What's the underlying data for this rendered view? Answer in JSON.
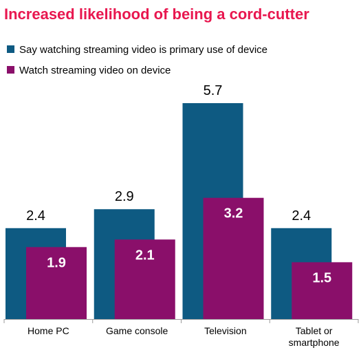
{
  "chart_data": {
    "type": "bar",
    "title": "Increased likelihood of being a cord-cutter",
    "xlabel": "",
    "ylabel": "",
    "ylim": [
      0,
      6.2
    ],
    "grid": false,
    "legend_position": "top-left",
    "categories": [
      [
        "Home PC"
      ],
      [
        "Game console"
      ],
      [
        "Television"
      ],
      [
        "Tablet or",
        "smartphone"
      ]
    ],
    "series": [
      {
        "name": "Say watching streaming video is primary use of device",
        "color": "#0e5a82",
        "values": [
          2.4,
          2.9,
          5.7,
          2.4
        ],
        "labels": [
          "2.4",
          "2.9",
          "5.7",
          "2.4"
        ],
        "label_placement": "above"
      },
      {
        "name": "Watch streaming video on device",
        "color": "#8a0f6a",
        "values": [
          1.9,
          2.1,
          3.2,
          1.5
        ],
        "labels": [
          "1.9",
          "2.1",
          "3.2",
          "1.5"
        ],
        "label_placement": "inside"
      }
    ]
  },
  "colors": {
    "title": "#e8174f",
    "axis": "#9a9a9a"
  }
}
